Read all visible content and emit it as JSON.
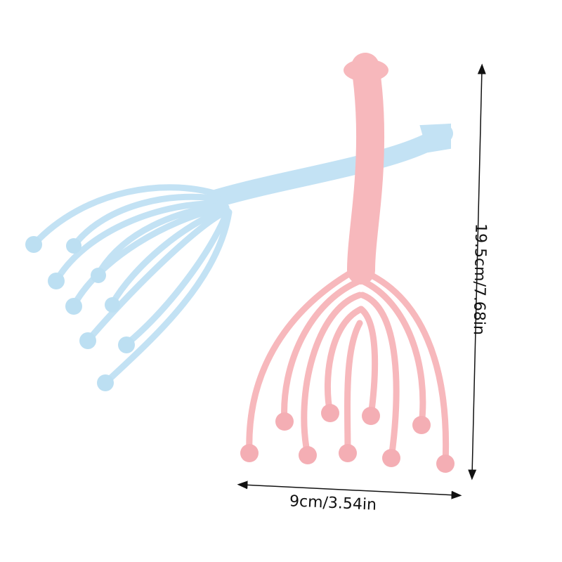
{
  "product": {
    "items": [
      {
        "name": "blue scalp massager",
        "color": "#bfe0f3"
      },
      {
        "name": "pink scalp massager",
        "color": "#f7b9bd"
      }
    ]
  },
  "dimensions": {
    "width_label": "9cm/3.54in",
    "height_label": "19.5cm/7.68in"
  }
}
